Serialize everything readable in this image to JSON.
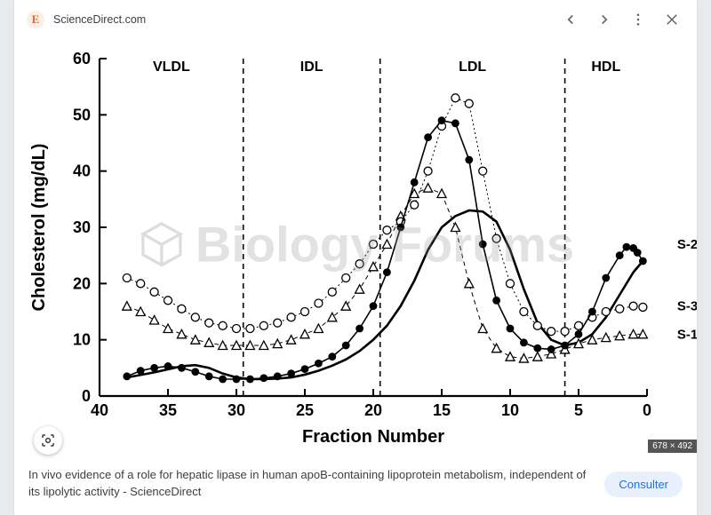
{
  "topbar": {
    "favicon_letter": "E",
    "source": "ScienceDirect.com"
  },
  "caption": "In vivo evidence of a role for hepatic lipase in human apoB-containing lipoprotein metabolism, independent of its lipolytic activity - ScienceDirect",
  "consult_label": "Consulter",
  "watermark": "Biology Forums",
  "dimensions_badge": "678 × 492",
  "chart": {
    "type": "line-marker",
    "xlabel": "Fraction Number",
    "ylabel": "Cholesterol (mg/dL)",
    "xlabel_fontsize": 20,
    "ylabel_fontsize": 20,
    "tick_fontsize": 18,
    "xlim": [
      40,
      0
    ],
    "ylim": [
      0,
      60
    ],
    "xticks": [
      40,
      35,
      30,
      25,
      20,
      15,
      10,
      5,
      0
    ],
    "yticks": [
      0,
      10,
      20,
      30,
      40,
      50,
      60
    ],
    "x_reversed": true,
    "background_color": "#ffffff",
    "axis_color": "#000000",
    "axis_width": 2.2,
    "regions": [
      {
        "label": "VLDL",
        "x_from": 40,
        "x_to": 29.5
      },
      {
        "label": "IDL",
        "x_from": 29.5,
        "x_to": 19.5
      },
      {
        "label": "LDL",
        "x_from": 19.5,
        "x_to": 6
      },
      {
        "label": "HDL",
        "x_from": 6,
        "x_to": 0
      }
    ],
    "region_dividers_x": [
      29.5,
      19.5,
      6
    ],
    "divider_dash": "6,5",
    "region_label_fontsize": 16,
    "series_label_fontsize": 15,
    "series": {
      "S2_filled": {
        "label": "S-2",
        "color": "#000000",
        "line_width": 1.6,
        "marker": "filled-circle",
        "marker_size": 4.4,
        "points": [
          [
            38,
            3.5
          ],
          [
            37,
            4.5
          ],
          [
            36,
            5
          ],
          [
            35,
            5.3
          ],
          [
            34,
            5
          ],
          [
            33,
            4.3
          ],
          [
            32,
            3.5
          ],
          [
            31,
            3
          ],
          [
            30,
            3
          ],
          [
            29,
            3
          ],
          [
            28,
            3.2
          ],
          [
            27,
            3.5
          ],
          [
            26,
            4
          ],
          [
            25,
            4.8
          ],
          [
            24,
            5.8
          ],
          [
            23,
            7
          ],
          [
            22,
            9
          ],
          [
            21,
            12
          ],
          [
            20,
            16
          ],
          [
            19,
            22
          ],
          [
            18,
            30
          ],
          [
            17,
            38
          ],
          [
            16,
            46
          ],
          [
            15,
            49
          ],
          [
            14,
            48.5
          ],
          [
            13,
            42
          ],
          [
            12,
            27
          ],
          [
            11,
            17
          ],
          [
            10,
            12
          ],
          [
            9,
            9.5
          ],
          [
            8,
            8.5
          ],
          [
            7,
            8.3
          ],
          [
            6,
            9
          ],
          [
            5,
            11
          ],
          [
            4,
            15
          ],
          [
            3,
            21
          ],
          [
            2,
            25
          ],
          [
            1.5,
            26.5
          ],
          [
            1,
            26.3
          ],
          [
            0.7,
            25.5
          ],
          [
            0.3,
            24
          ]
        ]
      },
      "S3_open_circle": {
        "label": "S-3",
        "color": "#000000",
        "line_width": 1.0,
        "line_dash": "2,3",
        "marker": "open-circle",
        "marker_size": 4.5,
        "points": [
          [
            38,
            21
          ],
          [
            37,
            20
          ],
          [
            36,
            18.5
          ],
          [
            35,
            17
          ],
          [
            34,
            15.5
          ],
          [
            33,
            14
          ],
          [
            32,
            13
          ],
          [
            31,
            12.5
          ],
          [
            30,
            12
          ],
          [
            29,
            12
          ],
          [
            28,
            12.5
          ],
          [
            27,
            13
          ],
          [
            26,
            14
          ],
          [
            25,
            15
          ],
          [
            24,
            16.5
          ],
          [
            23,
            18.5
          ],
          [
            22,
            21
          ],
          [
            21,
            23.5
          ],
          [
            20,
            27
          ],
          [
            19,
            29.5
          ],
          [
            18,
            31
          ],
          [
            17,
            34
          ],
          [
            16,
            40
          ],
          [
            15,
            48
          ],
          [
            14,
            53
          ],
          [
            13,
            52
          ],
          [
            12,
            40
          ],
          [
            11,
            28
          ],
          [
            10,
            20
          ],
          [
            9,
            15
          ],
          [
            8,
            12.5
          ],
          [
            7,
            11.5
          ],
          [
            6,
            11.5
          ],
          [
            5,
            12.5
          ],
          [
            4,
            14
          ],
          [
            3,
            15
          ],
          [
            2,
            15.5
          ],
          [
            1,
            16
          ],
          [
            0.3,
            15.8
          ]
        ]
      },
      "S1_triangle": {
        "label": "S-1",
        "color": "#000000",
        "line_width": 1.0,
        "line_dash": "5,4",
        "marker": "open-triangle",
        "marker_size": 5,
        "points": [
          [
            38,
            16
          ],
          [
            37,
            15
          ],
          [
            36,
            13.5
          ],
          [
            35,
            12
          ],
          [
            34,
            11
          ],
          [
            33,
            10
          ],
          [
            32,
            9.5
          ],
          [
            31,
            9
          ],
          [
            30,
            9
          ],
          [
            29,
            9
          ],
          [
            28,
            9
          ],
          [
            27,
            9.3
          ],
          [
            26,
            10
          ],
          [
            25,
            11
          ],
          [
            24,
            12
          ],
          [
            23,
            14
          ],
          [
            22,
            16
          ],
          [
            21,
            19
          ],
          [
            20,
            23
          ],
          [
            19,
            27
          ],
          [
            18,
            32
          ],
          [
            17,
            36
          ],
          [
            16,
            37
          ],
          [
            15,
            36
          ],
          [
            14,
            30
          ],
          [
            13,
            20
          ],
          [
            12,
            12
          ],
          [
            11,
            8.5
          ],
          [
            10,
            7
          ],
          [
            9,
            6.7
          ],
          [
            8,
            7
          ],
          [
            7,
            7.5
          ],
          [
            6,
            8.3
          ],
          [
            5,
            9.3
          ],
          [
            4,
            10
          ],
          [
            3,
            10.4
          ],
          [
            2,
            10.7
          ],
          [
            1,
            11
          ],
          [
            0.3,
            11
          ]
        ]
      },
      "S_solid": {
        "label": "",
        "color": "#000000",
        "line_width": 2.6,
        "marker": "none",
        "points": [
          [
            38,
            3.3
          ],
          [
            36,
            4.2
          ],
          [
            34,
            5.3
          ],
          [
            33,
            5.5
          ],
          [
            32,
            5
          ],
          [
            31,
            4
          ],
          [
            30,
            3.3
          ],
          [
            29,
            3
          ],
          [
            28,
            3
          ],
          [
            27,
            3.1
          ],
          [
            26,
            3.3
          ],
          [
            25,
            3.8
          ],
          [
            24,
            4.5
          ],
          [
            23,
            5.4
          ],
          [
            22,
            6.5
          ],
          [
            21,
            8
          ],
          [
            20,
            10
          ],
          [
            19,
            12.5
          ],
          [
            18,
            16
          ],
          [
            17,
            20.5
          ],
          [
            16,
            26
          ],
          [
            15,
            30
          ],
          [
            14,
            32
          ],
          [
            13,
            33
          ],
          [
            12,
            32.8
          ],
          [
            11,
            31
          ],
          [
            10,
            26
          ],
          [
            9,
            19
          ],
          [
            8,
            13
          ],
          [
            7,
            10
          ],
          [
            6,
            9
          ],
          [
            5,
            9.5
          ],
          [
            4,
            11
          ],
          [
            3,
            14
          ],
          [
            2,
            18
          ],
          [
            1,
            22
          ],
          [
            0.3,
            24
          ]
        ]
      }
    },
    "series_label_positions": {
      "S-2": {
        "x": -2.2,
        "y": 27
      },
      "S-3": {
        "x": -2.2,
        "y": 16
      },
      "S-1": {
        "x": -2.2,
        "y": 11
      }
    }
  }
}
